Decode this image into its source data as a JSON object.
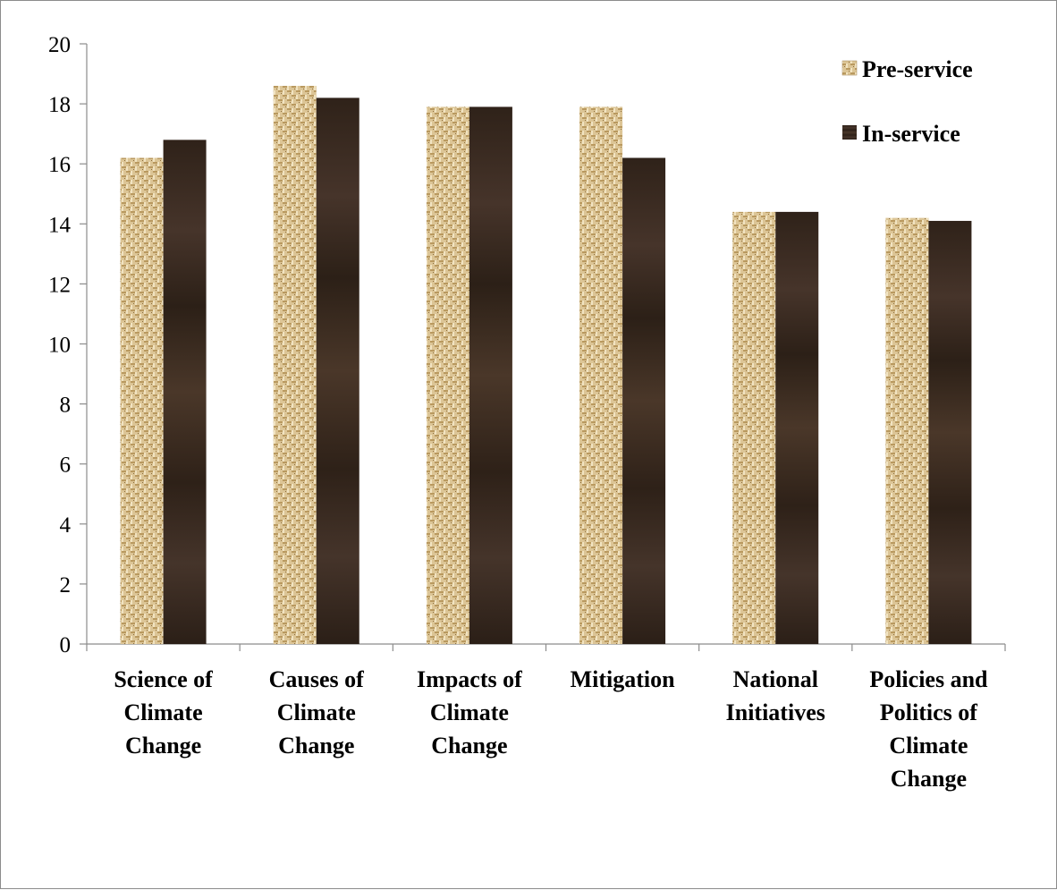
{
  "chart_data": {
    "type": "bar",
    "title": "",
    "xlabel": "",
    "ylabel": "",
    "ylim": [
      0,
      20
    ],
    "yticks": [
      "0",
      "2",
      "4",
      "6",
      "8",
      "10",
      "12",
      "14",
      "16",
      "18",
      "20"
    ],
    "grid": false,
    "legend_position": "top-right",
    "categories": [
      [
        "Science of",
        "Climate",
        "Change"
      ],
      [
        "Causes of",
        "Climate",
        "Change"
      ],
      [
        "Impacts of",
        "Climate",
        "Change"
      ],
      [
        "Mitigation"
      ],
      [
        "National",
        "Initiatives"
      ],
      [
        "Policies and",
        "Politics of",
        "Climate",
        "Change"
      ]
    ],
    "series": [
      {
        "name": "Pre-service",
        "color": "#d8c08e",
        "values": [
          16.2,
          18.6,
          17.9,
          17.9,
          14.4,
          14.2
        ]
      },
      {
        "name": "In-service",
        "color": "#3a2a20",
        "values": [
          16.8,
          18.2,
          17.9,
          16.2,
          14.4,
          14.1
        ]
      }
    ]
  }
}
